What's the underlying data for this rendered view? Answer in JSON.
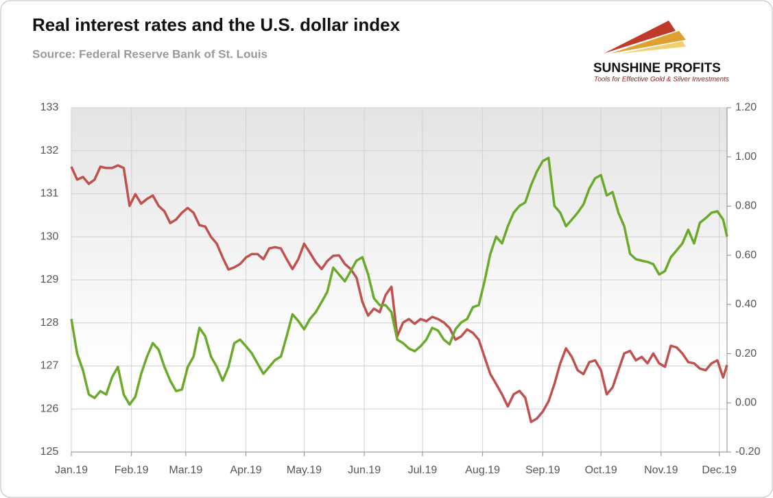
{
  "chart_data": {
    "type": "line",
    "title": "Real interest rates and the U.S. dollar index",
    "subtitle": "Source: Federal Reserve Bank of St. Louis",
    "logo_text": "SUNSHINE PROFITS",
    "logo_tagline": "Tools for Effective Gold & Silver Investments",
    "x": [
      0,
      3,
      6,
      9,
      12,
      15,
      18,
      21,
      24,
      27,
      30,
      33,
      36,
      39,
      42,
      45,
      48,
      51,
      54,
      57,
      60,
      63,
      66,
      69,
      72,
      75,
      78,
      81,
      84,
      87,
      90,
      93,
      96,
      99,
      102,
      105,
      108,
      111,
      114,
      117,
      120,
      123,
      126,
      129,
      132,
      135,
      138,
      141,
      144,
      147,
      150,
      153,
      156,
      159,
      162,
      165,
      168,
      171,
      174,
      177,
      180,
      183,
      186,
      189,
      192,
      195,
      198,
      201,
      204,
      207,
      210,
      213,
      216,
      219,
      222,
      225,
      228,
      231,
      234,
      237,
      240,
      243,
      246,
      249,
      252,
      255,
      258,
      261,
      264,
      267,
      270,
      273,
      276,
      279,
      282,
      285,
      288,
      291,
      294,
      297,
      300,
      303,
      306,
      309,
      312,
      315,
      318,
      321,
      324,
      327,
      330,
      333,
      336,
      338
    ],
    "xlim": [
      0,
      338
    ],
    "xticks": [
      {
        "value": 0,
        "label": "Jan.19"
      },
      {
        "value": 31,
        "label": "Feb.19"
      },
      {
        "value": 59,
        "label": "Mar.19"
      },
      {
        "value": 90,
        "label": "Apr.19"
      },
      {
        "value": 120,
        "label": "May.19"
      },
      {
        "value": 151,
        "label": "Jun.19"
      },
      {
        "value": 181,
        "label": "Jul.19"
      },
      {
        "value": 212,
        "label": "Aug.19"
      },
      {
        "value": 243,
        "label": "Sep.19"
      },
      {
        "value": 273,
        "label": "Oct.19"
      },
      {
        "value": 304,
        "label": "Nov.19"
      },
      {
        "value": 334,
        "label": "Dec.19"
      }
    ],
    "ylim": [
      125,
      133
    ],
    "yticks": [
      125,
      126,
      127,
      128,
      129,
      130,
      131,
      132,
      133
    ],
    "y2lim": [
      -0.2,
      1.2
    ],
    "y2ticks": [
      {
        "value": -0.2,
        "label": "-0.20"
      },
      {
        "value": 0,
        "label": "0.00"
      },
      {
        "value": 0.2,
        "label": "0.20"
      },
      {
        "value": 0.4,
        "label": "0.40"
      },
      {
        "value": 0.6,
        "label": "0.60"
      },
      {
        "value": 0.8,
        "label": "0.80"
      },
      {
        "value": 1.0,
        "label": "1.00"
      },
      {
        "value": 1.2,
        "label": "1.20"
      }
    ],
    "grid": true,
    "series": [
      {
        "color": "#c0504d",
        "values": [
          131.63,
          131.33,
          131.39,
          131.23,
          131.33,
          131.63,
          131.6,
          131.6,
          131.66,
          131.6,
          130.72,
          130.99,
          130.77,
          130.88,
          130.96,
          130.72,
          130.59,
          130.32,
          130.4,
          130.56,
          130.67,
          130.56,
          130.27,
          130.24,
          130.0,
          129.84,
          129.52,
          129.24,
          129.29,
          129.37,
          129.52,
          129.6,
          129.6,
          129.48,
          129.73,
          129.76,
          129.73,
          129.48,
          129.25,
          129.48,
          129.84,
          129.63,
          129.41,
          129.25,
          129.44,
          129.56,
          129.57,
          129.37,
          129.25,
          129.05,
          128.49,
          128.17,
          128.33,
          128.25,
          128.65,
          128.84,
          127.69,
          128.01,
          128.09,
          127.98,
          128.09,
          128.04,
          128.14,
          128.09,
          128.01,
          127.88,
          127.61,
          127.69,
          127.85,
          127.77,
          127.61,
          127.21,
          126.81,
          126.58,
          126.34,
          126.06,
          126.34,
          126.42,
          126.26,
          125.7,
          125.78,
          125.94,
          126.18,
          126.58,
          127.06,
          127.41,
          127.21,
          126.9,
          126.81,
          127.09,
          127.13,
          126.9,
          126.34,
          126.5,
          126.9,
          127.29,
          127.35,
          127.13,
          127.21,
          127.06,
          127.29,
          127.06,
          126.98,
          127.47,
          127.43,
          127.29,
          127.09,
          127.06,
          126.94,
          126.9,
          127.06,
          127.13,
          126.73,
          127.02
        ]
      },
      {
        "color": "#6aaa2a",
        "axis": "y2",
        "values": [
          0.341,
          0.2,
          0.132,
          0.034,
          0.02,
          0.048,
          0.034,
          0.104,
          0.146,
          0.034,
          -0.007,
          0.025,
          0.118,
          0.188,
          0.243,
          0.216,
          0.146,
          0.09,
          0.048,
          0.054,
          0.146,
          0.188,
          0.305,
          0.271,
          0.188,
          0.146,
          0.09,
          0.146,
          0.243,
          0.257,
          0.23,
          0.202,
          0.16,
          0.118,
          0.146,
          0.174,
          0.188,
          0.271,
          0.36,
          0.333,
          0.299,
          0.341,
          0.369,
          0.41,
          0.452,
          0.55,
          0.522,
          0.494,
          0.536,
          0.578,
          0.592,
          0.522,
          0.425,
          0.397,
          0.397,
          0.369,
          0.257,
          0.243,
          0.221,
          0.21,
          0.23,
          0.257,
          0.305,
          0.294,
          0.257,
          0.238,
          0.299,
          0.327,
          0.341,
          0.389,
          0.397,
          0.494,
          0.606,
          0.676,
          0.648,
          0.718,
          0.773,
          0.801,
          0.815,
          0.885,
          0.941,
          0.983,
          0.996,
          0.801,
          0.773,
          0.718,
          0.745,
          0.773,
          0.807,
          0.871,
          0.913,
          0.926,
          0.843,
          0.857,
          0.773,
          0.718,
          0.606,
          0.584,
          0.578,
          0.573,
          0.564,
          0.522,
          0.536,
          0.592,
          0.62,
          0.648,
          0.704,
          0.648,
          0.732,
          0.751,
          0.773,
          0.779,
          0.745,
          0.676
        ]
      }
    ]
  }
}
